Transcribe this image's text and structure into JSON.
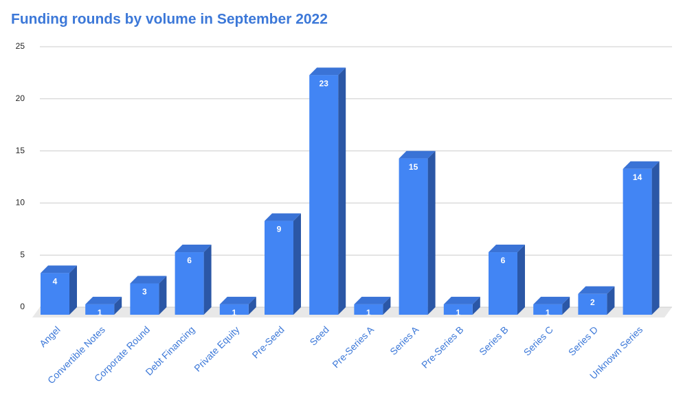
{
  "chart_data": {
    "type": "bar3d",
    "title": "Funding rounds by volume in September 2022",
    "categories": [
      "Angel",
      "Convertible Notes",
      "Corporate Round",
      "Debt Financing",
      "Private Equity",
      "Pre-Seed",
      "Seed",
      "Pre-Series A",
      "Series A",
      "Pre-Series B",
      "Series B",
      "Series C",
      "Series D",
      "Unknown Series"
    ],
    "values": [
      4,
      1,
      3,
      6,
      1,
      9,
      23,
      1,
      15,
      1,
      6,
      1,
      2,
      14
    ],
    "color": "#4285f4",
    "ylim": [
      0,
      25
    ],
    "yticks": [
      0,
      5,
      10,
      15,
      20,
      25
    ],
    "grid": true
  }
}
